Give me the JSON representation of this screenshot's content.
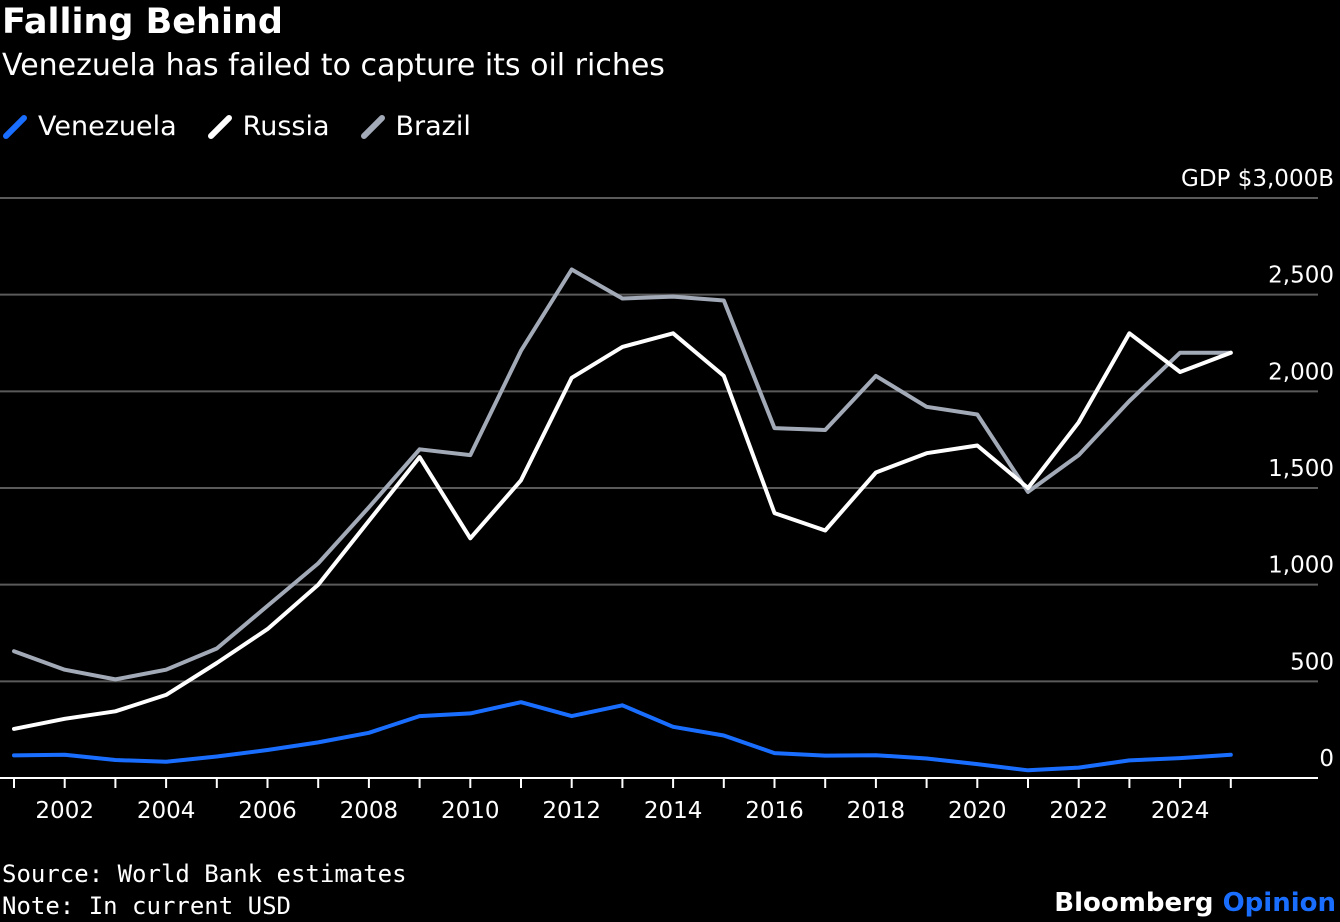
{
  "header": {
    "title": "Falling Behind",
    "subtitle": "Venezuela has failed to capture its oil riches"
  },
  "legend": [
    {
      "label": "Venezuela",
      "color": "#1a6eff"
    },
    {
      "label": "Russia",
      "color": "#ffffff"
    },
    {
      "label": "Brazil",
      "color": "#a3aab7"
    }
  ],
  "footer": {
    "source": "Source: World Bank estimates",
    "note": "Note: In current USD",
    "brand_main": "Bloomberg",
    "brand_accent": "Opinion"
  },
  "chart_data": {
    "type": "line",
    "ylabel_top": "GDP $3,000B",
    "ylim": [
      0,
      3000
    ],
    "yticks": [
      0,
      500,
      1000,
      1500,
      2000,
      2500,
      3000
    ],
    "ytick_labels": [
      "0",
      "500",
      "1,000",
      "1,500",
      "2,000",
      "2,500",
      "GDP $3,000B"
    ],
    "xticks": [
      2002,
      2004,
      2006,
      2008,
      2010,
      2012,
      2014,
      2016,
      2018,
      2020,
      2022,
      2024
    ],
    "xlim": [
      2001,
      2026.7
    ],
    "grid": true,
    "x": [
      2001,
      2002,
      2003,
      2004,
      2005,
      2006,
      2007,
      2008,
      2009,
      2010,
      2011,
      2012,
      2013,
      2014,
      2015,
      2016,
      2017,
      2018,
      2019,
      2020,
      2021,
      2022,
      2023,
      2024,
      2025
    ],
    "series": [
      {
        "name": "Venezuela",
        "color": "#1a6eff",
        "values": [
          117,
          120,
          93,
          84,
          111,
          145,
          184,
          234,
          320,
          334,
          392,
          320,
          376,
          265,
          220,
          129,
          116,
          118,
          101,
          72,
          40,
          54,
          91,
          103,
          120
        ]
      },
      {
        "name": "Russia",
        "color": "#ffffff",
        "values": [
          254,
          306,
          345,
          430,
          595,
          770,
          1000,
          1330,
          1660,
          1240,
          1540,
          2070,
          2230,
          2300,
          2080,
          1370,
          1280,
          1580,
          1680,
          1720,
          1500,
          1840,
          2300,
          2100,
          2200
        ]
      },
      {
        "name": "Brazil",
        "color": "#a3aab7",
        "values": [
          656,
          560,
          510,
          560,
          670,
          890,
          1110,
          1400,
          1700,
          1670,
          2210,
          2630,
          2480,
          2490,
          2470,
          1810,
          1800,
          2080,
          1920,
          1880,
          1480,
          1670,
          1950,
          2200,
          2200
        ]
      }
    ]
  }
}
